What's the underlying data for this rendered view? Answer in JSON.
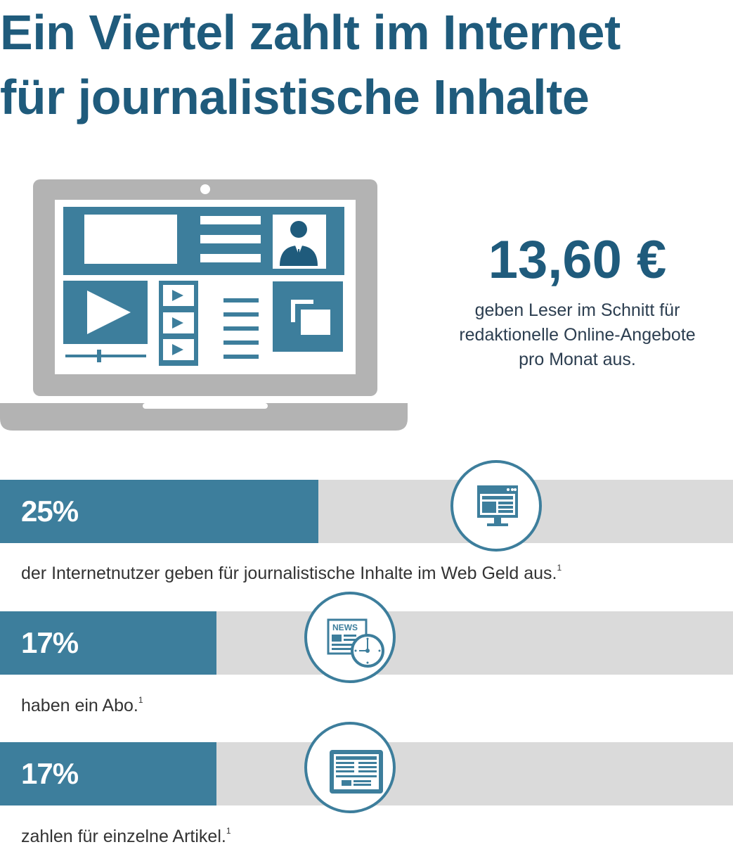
{
  "title": {
    "line1": "Ein Viertel zahlt im Internet",
    "line2": "für journalistische Inhalte"
  },
  "highlight": {
    "value": "13,60 €",
    "description_lines": [
      "geben Leser im Schnitt für",
      "redaktionelle Online-Angebote",
      "pro Monat aus."
    ]
  },
  "icons": {
    "laptop": "laptop-icon",
    "bar1": "monitor-icon",
    "bar2": "news-clock-icon",
    "bar3": "tablet-article-icon"
  },
  "colors": {
    "title": "#1f5b7c",
    "bar_fill": "#3d7e9c",
    "bar_track": "#dadada",
    "laptop": "#b3b3b3"
  },
  "chart_data": {
    "type": "bar",
    "orientation": "horizontal",
    "categories": [
      "der Internetnutzer geben für journalistische Inhalte im Web Geld aus.",
      "haben ein Abo.",
      "zahlen für einzelne Artikel."
    ],
    "values": [
      25,
      17,
      17
    ],
    "value_labels": [
      "25%",
      "17%",
      "17%"
    ],
    "footnote_mark": "1",
    "unit": "%"
  }
}
